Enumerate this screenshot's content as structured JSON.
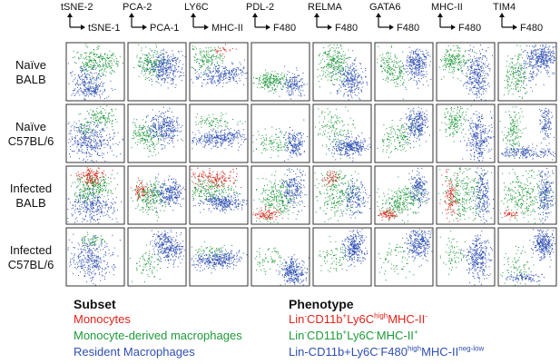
{
  "chart_data": {
    "type": "scatter",
    "columns": [
      {
        "y": "tSNE-2",
        "x": "tSNE-1"
      },
      {
        "y": "PCA-2",
        "x": "PCA-1"
      },
      {
        "y": "LY6C",
        "x": "MHC-II"
      },
      {
        "y": "PDL-2",
        "x": "F480"
      },
      {
        "y": "RELMA",
        "x": "F480"
      },
      {
        "y": "GATA6",
        "x": "F480"
      },
      {
        "y": "MHC-II",
        "x": "F480"
      },
      {
        "y": "TIM4",
        "x": "F480"
      }
    ],
    "rows": [
      {
        "line1": "Naïve",
        "line2": "BALB"
      },
      {
        "line1": "Naïve",
        "line2": "C57BL/6"
      },
      {
        "line1": "Infected",
        "line2": "BALB"
      },
      {
        "line1": "Infected",
        "line2": "C57BL/6"
      }
    ],
    "series_colors": {
      "monocytes": "#e2231a",
      "monocyte_derived": "#1f9a3a",
      "resident": "#2f4fb3"
    }
  },
  "legend": {
    "subset_header": "Subset",
    "phenotype_header": "Phenotype",
    "rows": [
      {
        "key": "monocytes",
        "subset": "Monocytes",
        "phenotype": [
          {
            "t": "Lin"
          },
          {
            "t": "-",
            "sup": true
          },
          {
            "t": "CD11b"
          },
          {
            "t": "+",
            "sup": true
          },
          {
            "t": "Ly6C"
          },
          {
            "t": "high",
            "sup": true
          },
          {
            "t": "MHC-II"
          },
          {
            "t": "-",
            "sup": true
          }
        ]
      },
      {
        "key": "mdm",
        "subset": "Monocyte-derived macrophages",
        "phenotype": [
          {
            "t": "Lin"
          },
          {
            "t": "-",
            "sup": true
          },
          {
            "t": "CD11b"
          },
          {
            "t": "+",
            "sup": true
          },
          {
            "t": "Ly6C"
          },
          {
            "t": "-",
            "sup": true
          },
          {
            "t": "MHC-II"
          },
          {
            "t": "+",
            "sup": true
          }
        ]
      },
      {
        "key": "res",
        "subset": "Resident Macrophages",
        "phenotype": [
          {
            "t": "Lin-CD11b+Ly6C"
          },
          {
            "t": "-",
            "sup": true
          },
          {
            "t": "F480"
          },
          {
            "t": "high",
            "sup": true
          },
          {
            "t": "MHC-II"
          },
          {
            "t": "neg-low",
            "sup": true
          }
        ]
      }
    ]
  }
}
